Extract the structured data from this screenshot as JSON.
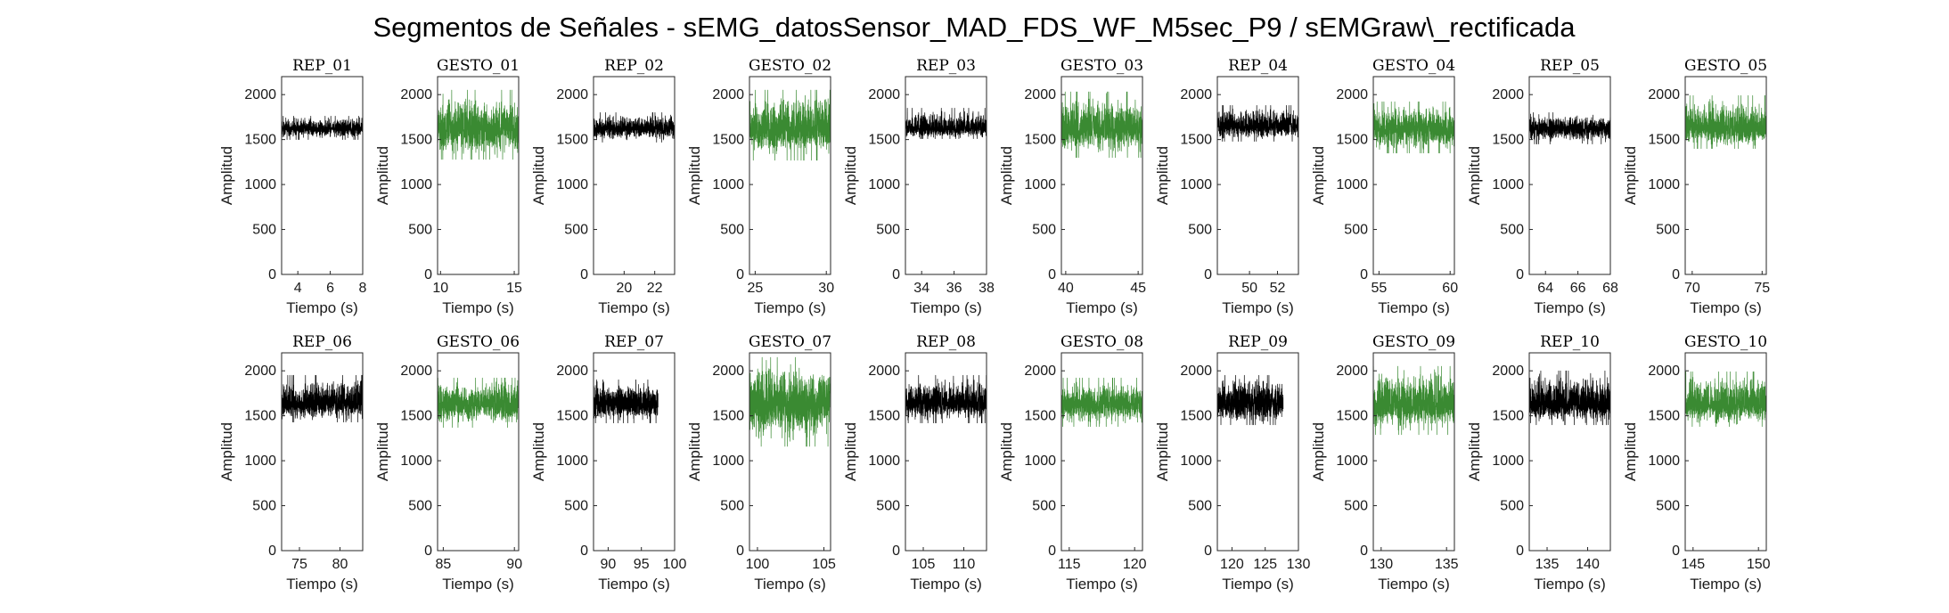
{
  "figure": {
    "title": "Segmentos de Señales - sEMG_datosSensor_MAD_FDS_WF_M5sec_P9 / sEMGraw\\_rectificada"
  },
  "colors": {
    "rep": "#000000",
    "gesto": "#3a8a32",
    "axis": "#262626"
  },
  "chart_data": [
    {
      "type": "line",
      "title": "REP_01",
      "xlabel": "Tiempo (s)",
      "ylabel": "Amplitud",
      "xlim": [
        3,
        8
      ],
      "ylim": [
        0,
        2200
      ],
      "xticks": [
        4,
        6,
        8
      ],
      "yticks": [
        0,
        500,
        1000,
        1500,
        2000
      ],
      "series": [
        {
          "color": "black",
          "x_range": [
            3,
            8
          ],
          "baseline": 1620,
          "band": [
            1500,
            1760
          ]
        }
      ]
    },
    {
      "type": "line",
      "title": "GESTO_01",
      "xlabel": "Tiempo (s)",
      "ylabel": "Amplitud",
      "xlim": [
        9.8,
        15.3
      ],
      "ylim": [
        0,
        2200
      ],
      "xticks": [
        10,
        15
      ],
      "yticks": [
        0,
        500,
        1000,
        1500,
        2000
      ],
      "series": [
        {
          "color": "green",
          "x_range": [
            9.8,
            15.3
          ],
          "baseline": 1620,
          "band": [
            1280,
            2050
          ]
        }
      ]
    },
    {
      "type": "line",
      "title": "REP_02",
      "xlabel": "Tiempo (s)",
      "ylabel": "Amplitud",
      "xlim": [
        18,
        23.3
      ],
      "ylim": [
        0,
        2200
      ],
      "xticks": [
        20,
        22
      ],
      "yticks": [
        0,
        500,
        1000,
        1500,
        2000
      ],
      "series": [
        {
          "color": "black",
          "x_range": [
            18,
            23.3
          ],
          "baseline": 1620,
          "band": [
            1470,
            1800
          ]
        }
      ]
    },
    {
      "type": "line",
      "title": "GESTO_02",
      "xlabel": "Tiempo (s)",
      "ylabel": "Amplitud",
      "xlim": [
        24.6,
        30.3
      ],
      "ylim": [
        0,
        2200
      ],
      "xticks": [
        25,
        30
      ],
      "yticks": [
        0,
        500,
        1000,
        1500,
        2000
      ],
      "series": [
        {
          "color": "green",
          "x_range": [
            24.6,
            30.3
          ],
          "baseline": 1620,
          "band": [
            1270,
            2050
          ]
        }
      ]
    },
    {
      "type": "line",
      "title": "REP_03",
      "xlabel": "Tiempo (s)",
      "ylabel": "Amplitud",
      "xlim": [
        33,
        38
      ],
      "ylim": [
        0,
        2200
      ],
      "xticks": [
        34,
        36,
        38
      ],
      "yticks": [
        0,
        500,
        1000,
        1500,
        2000
      ],
      "series": [
        {
          "color": "black",
          "x_range": [
            33,
            38
          ],
          "baseline": 1620,
          "band": [
            1510,
            1850
          ]
        }
      ]
    },
    {
      "type": "line",
      "title": "GESTO_03",
      "xlabel": "Tiempo (s)",
      "ylabel": "Amplitud",
      "xlim": [
        39.7,
        45.3
      ],
      "ylim": [
        0,
        2200
      ],
      "xticks": [
        40,
        45
      ],
      "yticks": [
        0,
        500,
        1000,
        1500,
        2000
      ],
      "series": [
        {
          "color": "green",
          "x_range": [
            39.7,
            45.3
          ],
          "baseline": 1620,
          "band": [
            1300,
            2030
          ]
        }
      ]
    },
    {
      "type": "line",
      "title": "REP_04",
      "xlabel": "Tiempo (s)",
      "ylabel": "Amplitud",
      "xlim": [
        47.7,
        53.5
      ],
      "ylim": [
        0,
        2200
      ],
      "xticks": [
        50,
        52
      ],
      "yticks": [
        0,
        500,
        1000,
        1500,
        2000
      ],
      "series": [
        {
          "color": "black",
          "x_range": [
            47.7,
            53.5
          ],
          "baseline": 1650,
          "band": [
            1480,
            1880
          ]
        }
      ]
    },
    {
      "type": "line",
      "title": "GESTO_04",
      "xlabel": "Tiempo (s)",
      "ylabel": "Amplitud",
      "xlim": [
        54.6,
        60.3
      ],
      "ylim": [
        0,
        2200
      ],
      "xticks": [
        55,
        60
      ],
      "yticks": [
        0,
        500,
        1000,
        1500,
        2000
      ],
      "series": [
        {
          "color": "green",
          "x_range": [
            54.6,
            60.3
          ],
          "baseline": 1620,
          "band": [
            1350,
            1920
          ]
        }
      ]
    },
    {
      "type": "line",
      "title": "REP_05",
      "xlabel": "Tiempo (s)",
      "ylabel": "Amplitud",
      "xlim": [
        63,
        68
      ],
      "ylim": [
        0,
        2200
      ],
      "xticks": [
        64,
        66,
        68
      ],
      "yticks": [
        0,
        500,
        1000,
        1500,
        2000
      ],
      "series": [
        {
          "color": "black",
          "x_range": [
            63,
            68
          ],
          "baseline": 1620,
          "band": [
            1450,
            1800
          ]
        }
      ]
    },
    {
      "type": "line",
      "title": "GESTO_05",
      "xlabel": "Tiempo (s)",
      "ylabel": "Amplitud",
      "xlim": [
        69.5,
        75.3
      ],
      "ylim": [
        0,
        2200
      ],
      "xticks": [
        70,
        75
      ],
      "yticks": [
        0,
        500,
        1000,
        1500,
        2000
      ],
      "series": [
        {
          "color": "green",
          "x_range": [
            69.5,
            75.3
          ],
          "baseline": 1620,
          "band": [
            1400,
            1990
          ]
        }
      ]
    },
    {
      "type": "line",
      "title": "REP_06",
      "xlabel": "Tiempo (s)",
      "ylabel": "Amplitud",
      "xlim": [
        72.8,
        82.8
      ],
      "ylim": [
        0,
        2200
      ],
      "xticks": [
        75,
        80
      ],
      "yticks": [
        0,
        500,
        1000,
        1500,
        2000
      ],
      "series": [
        {
          "color": "black",
          "x_range": [
            72.8,
            82.8
          ],
          "baseline": 1640,
          "band": [
            1430,
            1950
          ]
        }
      ]
    },
    {
      "type": "line",
      "title": "GESTO_06",
      "xlabel": "Tiempo (s)",
      "ylabel": "Amplitud",
      "xlim": [
        84.6,
        90.3
      ],
      "ylim": [
        0,
        2200
      ],
      "xticks": [
        85,
        90
      ],
      "yticks": [
        0,
        500,
        1000,
        1500,
        2000
      ],
      "series": [
        {
          "color": "green",
          "x_range": [
            84.6,
            90.3
          ],
          "baseline": 1630,
          "band": [
            1370,
            1920
          ]
        }
      ]
    },
    {
      "type": "line",
      "title": "REP_07",
      "xlabel": "Tiempo (s)",
      "ylabel": "Amplitud",
      "xlim": [
        87.8,
        100
      ],
      "ylim": [
        0,
        2200
      ],
      "xticks": [
        90,
        95,
        100
      ],
      "yticks": [
        0,
        500,
        1000,
        1500,
        2000
      ],
      "series": [
        {
          "color": "black",
          "x_range": [
            87.8,
            97.5
          ],
          "baseline": 1630,
          "band": [
            1420,
            1900
          ]
        }
      ]
    },
    {
      "type": "line",
      "title": "GESTO_07",
      "xlabel": "Tiempo (s)",
      "ylabel": "Amplitud",
      "xlim": [
        99.4,
        105.5
      ],
      "ylim": [
        0,
        2200
      ],
      "xticks": [
        100,
        105
      ],
      "yticks": [
        0,
        500,
        1000,
        1500,
        2000
      ],
      "series": [
        {
          "color": "green",
          "x_range": [
            99.4,
            105.5
          ],
          "baseline": 1640,
          "band": [
            1160,
            2150
          ]
        }
      ]
    },
    {
      "type": "line",
      "title": "REP_08",
      "xlabel": "Tiempo (s)",
      "ylabel": "Amplitud",
      "xlim": [
        102.8,
        112.8
      ],
      "ylim": [
        0,
        2200
      ],
      "xticks": [
        105,
        110
      ],
      "yticks": [
        0,
        500,
        1000,
        1500,
        2000
      ],
      "series": [
        {
          "color": "black",
          "x_range": [
            102.8,
            112.8
          ],
          "baseline": 1640,
          "band": [
            1420,
            1950
          ]
        }
      ]
    },
    {
      "type": "line",
      "title": "GESTO_08",
      "xlabel": "Tiempo (s)",
      "ylabel": "Amplitud",
      "xlim": [
        114.4,
        120.6
      ],
      "ylim": [
        0,
        2200
      ],
      "xticks": [
        115,
        120
      ],
      "yticks": [
        0,
        500,
        1000,
        1500,
        2000
      ],
      "series": [
        {
          "color": "green",
          "x_range": [
            114.4,
            120.6
          ],
          "baseline": 1620,
          "band": [
            1380,
            1920
          ]
        }
      ]
    },
    {
      "type": "line",
      "title": "REP_09",
      "xlabel": "Tiempo (s)",
      "ylabel": "Amplitud",
      "xlim": [
        117.8,
        130
      ],
      "ylim": [
        0,
        2200
      ],
      "xticks": [
        120,
        125,
        130
      ],
      "yticks": [
        0,
        500,
        1000,
        1500,
        2000
      ],
      "series": [
        {
          "color": "black",
          "x_range": [
            117.8,
            127.7
          ],
          "baseline": 1640,
          "band": [
            1400,
            1950
          ]
        }
      ]
    },
    {
      "type": "line",
      "title": "GESTO_09",
      "xlabel": "Tiempo (s)",
      "ylabel": "Amplitud",
      "xlim": [
        129.4,
        135.6
      ],
      "ylim": [
        0,
        2200
      ],
      "xticks": [
        130,
        135
      ],
      "yticks": [
        0,
        500,
        1000,
        1500,
        2000
      ],
      "series": [
        {
          "color": "green",
          "x_range": [
            129.4,
            135.6
          ],
          "baseline": 1620,
          "band": [
            1290,
            2050
          ]
        }
      ]
    },
    {
      "type": "line",
      "title": "REP_10",
      "xlabel": "Tiempo (s)",
      "ylabel": "Amplitud",
      "xlim": [
        132.8,
        142.8
      ],
      "ylim": [
        0,
        2200
      ],
      "xticks": [
        135,
        140
      ],
      "yticks": [
        0,
        500,
        1000,
        1500,
        2000
      ],
      "series": [
        {
          "color": "black",
          "x_range": [
            132.8,
            142.8
          ],
          "baseline": 1630,
          "band": [
            1400,
            2000
          ]
        }
      ]
    },
    {
      "type": "line",
      "title": "GESTO_10",
      "xlabel": "Tiempo (s)",
      "ylabel": "Amplitud",
      "xlim": [
        144.4,
        150.6
      ],
      "ylim": [
        0,
        2200
      ],
      "xticks": [
        145,
        150
      ],
      "yticks": [
        0,
        500,
        1000,
        1500,
        2000
      ],
      "series": [
        {
          "color": "green",
          "x_range": [
            144.4,
            150.6
          ],
          "baseline": 1620,
          "band": [
            1380,
            1990
          ]
        }
      ]
    }
  ]
}
